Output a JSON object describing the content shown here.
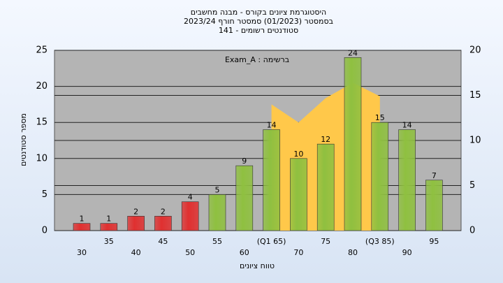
{
  "chart_data": {
    "type": "bar",
    "title": [
      "היסטוגרמת ציונים בקורס - מבנה מחשבים",
      "בסמסטר  (01/2023)  סמסטר חורף 2023/24",
      "סטודנטים רשומים - 141"
    ],
    "annotation": "Exam_A : ברשימה",
    "x_label": "טווח ציונים",
    "y_label": "מספר סטודנטים",
    "categories": [
      "30",
      "35",
      "40",
      "45",
      "50",
      "55",
      "60",
      "(Q1 65)",
      "70",
      "75",
      "80",
      "(Q3 85)",
      "90",
      "95"
    ],
    "values": [
      1,
      1,
      2,
      2,
      4,
      5,
      9,
      14,
      10,
      12,
      24,
      15,
      14,
      7
    ],
    "bar_colors": [
      "#e03030",
      "#e03030",
      "#e03030",
      "#e03030",
      "#e03030",
      "#8fc040",
      "#8fc040",
      "#8fc040",
      "#8fc040",
      "#8fc040",
      "#8fc040",
      "#8fc040",
      "#8fc040",
      "#8fc040"
    ],
    "area": {
      "color": "#ffc84a",
      "axis": "y2",
      "values": [
        null,
        null,
        null,
        null,
        null,
        null,
        null,
        14,
        12,
        14.7,
        16.4,
        14.9,
        null,
        null
      ]
    },
    "ylim": [
      0,
      25
    ],
    "yticks": [
      0,
      5,
      10,
      15,
      20,
      25
    ],
    "y2lim": [
      0,
      20
    ],
    "y2ticks": [
      0,
      5,
      10,
      15,
      20
    ],
    "grid": true
  }
}
